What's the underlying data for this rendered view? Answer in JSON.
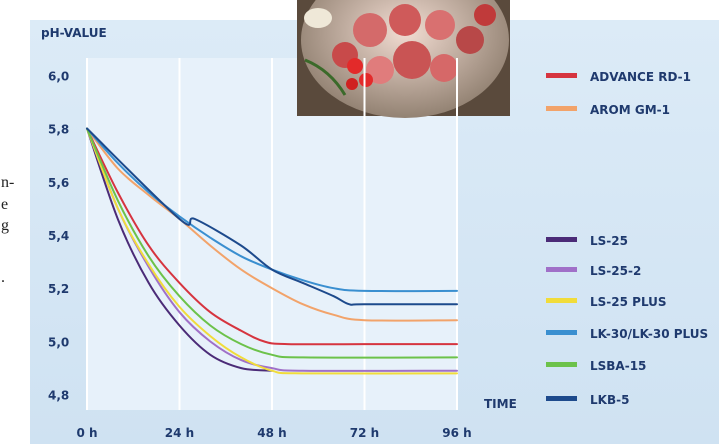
{
  "chart_data": {
    "type": "line",
    "title": "",
    "ylabel": "pH-VALUE",
    "xlabel": "TIME",
    "x_ticks": [
      "0 h",
      "24 h",
      "48 h",
      "72 h",
      "96 h"
    ],
    "y_ticks": [
      "6,0",
      "5,8",
      "5,6",
      "5,4",
      "5,2",
      "5,0",
      "4,8"
    ],
    "ylim": [
      4.75,
      6.05
    ],
    "xlim": [
      0,
      96
    ],
    "grid": "vertical",
    "legend_position": "right",
    "series": [
      {
        "name": "ADVANCE RD-1",
        "color": "#d6343f",
        "x": [
          0,
          8,
          16,
          24,
          32,
          40,
          46,
          52,
          72,
          96
        ],
        "y": [
          5.8,
          5.56,
          5.36,
          5.22,
          5.11,
          5.04,
          5.0,
          4.99,
          4.99,
          4.99
        ]
      },
      {
        "name": "AROM GM-1",
        "color": "#f2a36a",
        "x": [
          0,
          8,
          16,
          24,
          32,
          40,
          48,
          56,
          64,
          72,
          96
        ],
        "y": [
          5.8,
          5.65,
          5.55,
          5.46,
          5.36,
          5.27,
          5.2,
          5.14,
          5.1,
          5.08,
          5.08
        ]
      },
      {
        "name": "LS-25",
        "color": "#4b2b77",
        "x": [
          0,
          8,
          16,
          24,
          32,
          40,
          48
        ],
        "y": [
          5.8,
          5.46,
          5.22,
          5.06,
          4.95,
          4.9,
          4.89
        ]
      },
      {
        "name": "LS-25-2",
        "color": "#a070c8",
        "x": [
          0,
          8,
          16,
          24,
          32,
          40,
          48,
          56,
          96
        ],
        "y": [
          5.8,
          5.5,
          5.28,
          5.11,
          5.0,
          4.93,
          4.9,
          4.89,
          4.89
        ]
      },
      {
        "name": "LS-25 PLUS",
        "color": "#f1dc3a",
        "x": [
          0,
          8,
          16,
          24,
          32,
          40,
          48,
          56,
          96
        ],
        "y": [
          5.8,
          5.5,
          5.29,
          5.13,
          5.02,
          4.94,
          4.89,
          4.88,
          4.88
        ]
      },
      {
        "name": "LK-30/LK-30 PLUS",
        "color": "#3a8fd0",
        "x": [
          0,
          8,
          16,
          24,
          32,
          40,
          48,
          56,
          64,
          72,
          96
        ],
        "y": [
          5.8,
          5.67,
          5.56,
          5.47,
          5.39,
          5.32,
          5.27,
          5.23,
          5.2,
          5.19,
          5.19
        ]
      },
      {
        "name": "LSBA-15",
        "color": "#6cc24a",
        "x": [
          0,
          8,
          16,
          24,
          32,
          40,
          48,
          56,
          96
        ],
        "y": [
          5.8,
          5.53,
          5.32,
          5.17,
          5.06,
          4.99,
          4.95,
          4.94,
          4.94
        ]
      },
      {
        "name": "LKB-5",
        "color": "#1d4a8c",
        "x": [
          0,
          24,
          28,
          40,
          48,
          56,
          64,
          68,
          72,
          96
        ],
        "y": [
          5.8,
          5.46,
          5.46,
          5.36,
          5.27,
          5.22,
          5.17,
          5.14,
          5.14,
          5.14
        ]
      }
    ]
  },
  "left_fragments": [
    "n-",
    "e",
    "g",
    "."
  ]
}
